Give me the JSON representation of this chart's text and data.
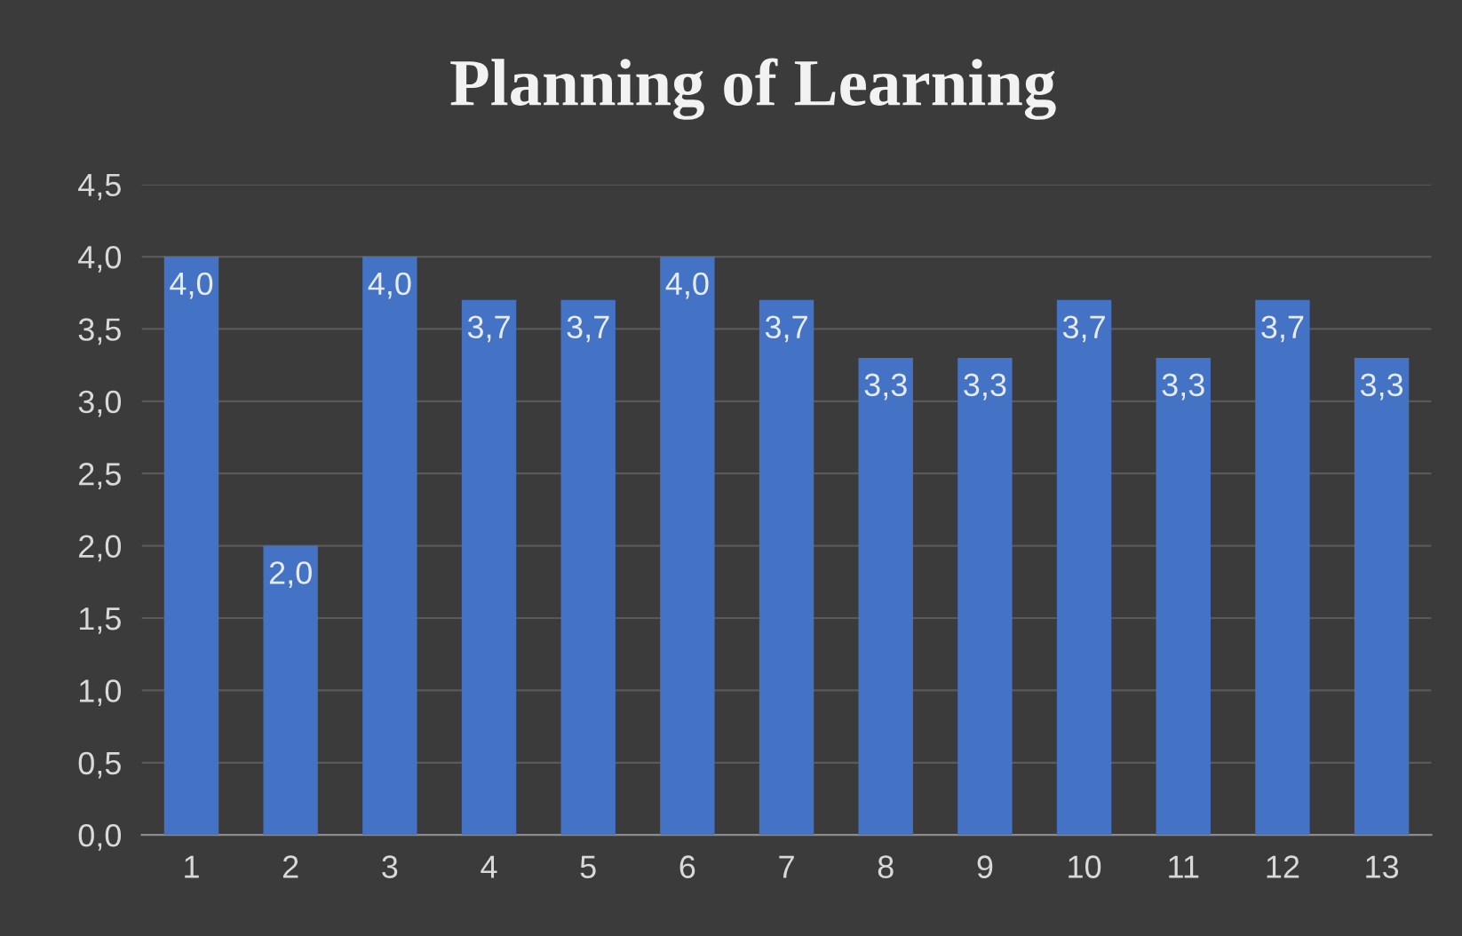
{
  "chart_data": {
    "type": "bar",
    "title": "Planning of Learning",
    "categories": [
      "1",
      "2",
      "3",
      "4",
      "5",
      "6",
      "7",
      "8",
      "9",
      "10",
      "11",
      "12",
      "13"
    ],
    "values": [
      4.0,
      2.0,
      4.0,
      3.7,
      3.7,
      4.0,
      3.7,
      3.3,
      3.3,
      3.7,
      3.3,
      3.7,
      3.3
    ],
    "value_labels": [
      "4,0",
      "2,0",
      "4,0",
      "3,7",
      "3,7",
      "4,0",
      "3,7",
      "3,3",
      "3,3",
      "3,7",
      "3,3",
      "3,7",
      "3,3"
    ],
    "color": "#4472c4",
    "ylim": [
      0,
      4.5
    ],
    "yticks": [
      {
        "value": 0,
        "label": "0,0"
      },
      {
        "value": 0.5,
        "label": "0,5"
      },
      {
        "value": 1,
        "label": "1,0"
      },
      {
        "value": 1.5,
        "label": "1,5"
      },
      {
        "value": 2,
        "label": "2,0"
      },
      {
        "value": 2.5,
        "label": "2,5"
      },
      {
        "value": 3,
        "label": "3,0"
      },
      {
        "value": 3.5,
        "label": "3,5"
      },
      {
        "value": 4,
        "label": "4,0"
      },
      {
        "value": 4.5,
        "label": "4,5"
      }
    ],
    "grid": "y",
    "legend": false
  }
}
